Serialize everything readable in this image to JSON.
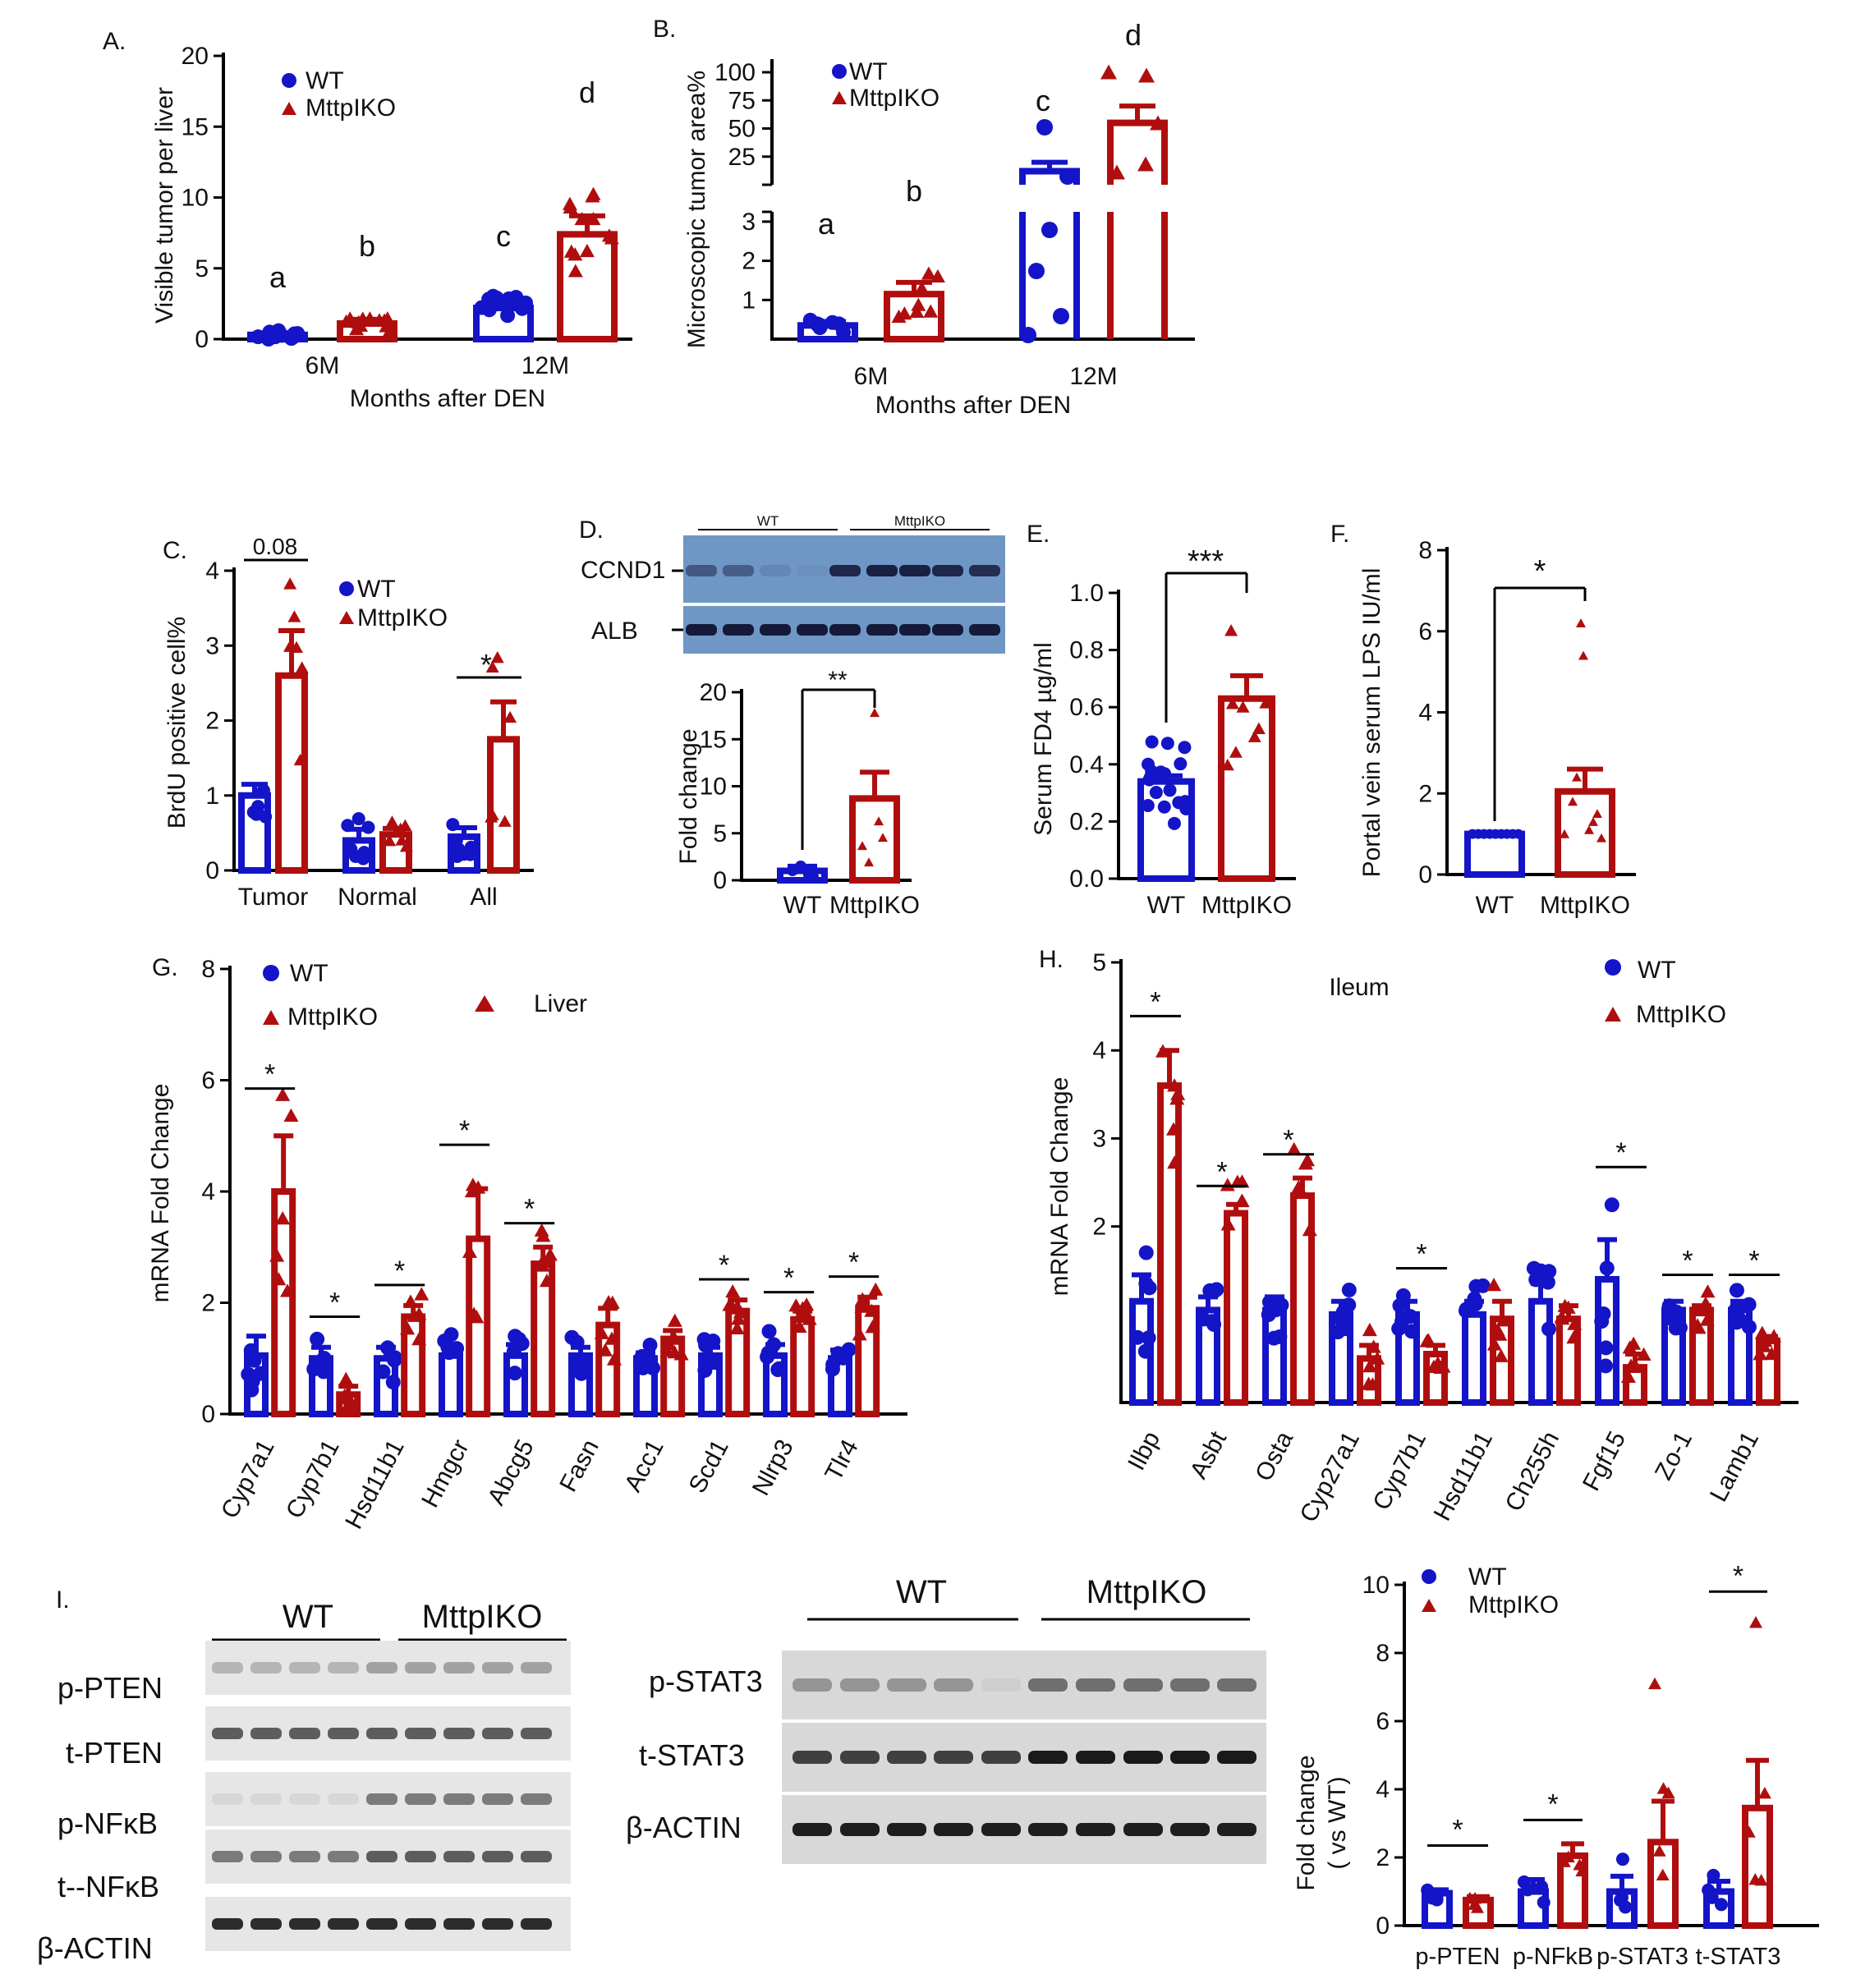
{
  "colors": {
    "wt": "#1414c8",
    "ko": "#b00e0e",
    "axis": "#000000",
    "blot_blue": "#6f97c6"
  },
  "panelA": {
    "letter": "A.",
    "ylabel": "Visible tumor per liver",
    "xlabel": "Months after DEN",
    "legend": [
      "WT",
      "MttpIKO"
    ],
    "sig_letters": [
      "a",
      "b",
      "c",
      "d"
    ]
  },
  "panelB": {
    "letter": "B.",
    "ylabel": "Microscopic tumor area%",
    "xlabel": "Months after DEN",
    "legend": [
      "WT",
      "MttpIKO"
    ],
    "sig_letters": [
      "a",
      "b",
      "c",
      "d"
    ]
  },
  "panelC": {
    "letter": "C.",
    "ylabel": "BrdU positive cell%",
    "legend": [
      "WT",
      "MttpIKO"
    ],
    "annotations": [
      "0.08",
      "*"
    ]
  },
  "panelD": {
    "letter": "D.",
    "blot_groups": [
      "WT",
      "MttpIKO"
    ],
    "blot_rows": [
      "CCND1",
      "ALB"
    ],
    "ylabel": "Fold change",
    "annotation": "**"
  },
  "panelE": {
    "letter": "E.",
    "ylabel": "Serum FD4 µg/ml",
    "annotation": "***"
  },
  "panelF": {
    "letter": "F.",
    "ylabel": "Portal vein serum LPS IU/ml",
    "annotation": "*"
  },
  "panelG": {
    "letter": "G.",
    "ylabel": "mRNA Fold Change",
    "legend": [
      "WT",
      "MttpIKO"
    ],
    "tissue": "Liver",
    "sig_mark": "*"
  },
  "panelH": {
    "letter": "H.",
    "ylabel": "mRNA Fold Change",
    "legend": [
      "WT",
      "MttpIKO"
    ],
    "tissue": "Ileum",
    "sig_mark": "*"
  },
  "panelI": {
    "letter": "I.",
    "blot1_groups": [
      "WT",
      "MttpIKO"
    ],
    "blot1_rows": [
      "p-PTEN",
      "t-PTEN",
      "p-NFκB",
      "t--NFκB",
      "β-ACTIN"
    ],
    "blot2_groups": [
      "WT",
      "MttpIKO"
    ],
    "blot2_rows": [
      "p-STAT3",
      "t-STAT3",
      "β-ACTIN"
    ],
    "ylabel": "Fold change",
    "ylabel2": "( vs WT)",
    "legend": [
      "WT",
      "MttpIKO"
    ],
    "sig_mark": "*"
  },
  "chart_data": [
    {
      "id": "A",
      "type": "bar",
      "categories": [
        "6M",
        "12M"
      ],
      "series": [
        {
          "name": "WT",
          "values": [
            0.3,
            2.2
          ]
        },
        {
          "name": "MttpIKO",
          "values": [
            1.1,
            7.4
          ]
        }
      ],
      "errors": [
        [
          0.15,
          0.4
        ],
        [
          0.3,
          1.3
        ]
      ],
      "ylim": [
        0,
        20
      ],
      "yticks": [
        0,
        5,
        10,
        15,
        20
      ],
      "ylabel": "Visible tumor per liver",
      "xlabel": "Months after DEN"
    },
    {
      "id": "B",
      "type": "bar",
      "broken_axis": true,
      "categories": [
        "6M",
        "12M"
      ],
      "series": [
        {
          "name": "WT",
          "values": [
            0.35,
            12
          ]
        },
        {
          "name": "MttpIKO",
          "values": [
            1.15,
            55
          ]
        }
      ],
      "errors": [
        [
          0.1,
          8
        ],
        [
          0.3,
          15
        ]
      ],
      "yticks_lower": [
        1,
        2,
        3
      ],
      "yticks_upper": [
        25,
        50,
        75,
        100
      ],
      "ylabel": "Microscopic tumor area%",
      "xlabel": "Months after DEN"
    },
    {
      "id": "C",
      "type": "bar",
      "categories": [
        "Tumor",
        "Normal",
        "All"
      ],
      "series": [
        {
          "name": "WT",
          "values": [
            1.0,
            0.4,
            0.45
          ]
        },
        {
          "name": "MttpIKO",
          "values": [
            2.6,
            0.48,
            1.75
          ]
        }
      ],
      "errors": [
        [
          0.15,
          0.15,
          0.12
        ],
        [
          0.6,
          0.08,
          0.5
        ]
      ],
      "ylim": [
        0,
        4
      ],
      "yticks": [
        0,
        1,
        2,
        3,
        4
      ],
      "ylabel": "BrdU positive cell%"
    },
    {
      "id": "D",
      "type": "bar",
      "categories": [
        "WT",
        "MttpIKO"
      ],
      "values": [
        1.0,
        8.7
      ],
      "errors": [
        0.5,
        2.8
      ],
      "ylim": [
        0,
        20
      ],
      "yticks": [
        0,
        5,
        10,
        15,
        20
      ],
      "ylabel": "Fold change"
    },
    {
      "id": "E",
      "type": "bar",
      "categories": [
        "WT",
        "MttpIKO"
      ],
      "values": [
        0.34,
        0.63
      ],
      "errors": [
        0.02,
        0.08
      ],
      "ylim": [
        0,
        1.0
      ],
      "yticks": [
        0.0,
        0.2,
        0.4,
        0.6,
        0.8,
        1.0
      ],
      "ylabel": "Serum FD4 µg/ml"
    },
    {
      "id": "F",
      "type": "bar",
      "categories": [
        "WT",
        "MttpIKO"
      ],
      "values": [
        1.0,
        2.05
      ],
      "errors": [
        0.03,
        0.55
      ],
      "ylim": [
        0,
        8
      ],
      "yticks": [
        0,
        2,
        4,
        6,
        8
      ],
      "ylabel": "Portal vein serum LPS IU/ml"
    },
    {
      "id": "G",
      "type": "bar",
      "categories": [
        "Cyp7a1",
        "Cyp7b1",
        "Hsd11b1",
        "Hmgcr",
        "Abcg5",
        "Fasn",
        "Acc1",
        "Scd1",
        "Nlrp3",
        "Tlr4"
      ],
      "series": [
        {
          "name": "WT",
          "values": [
            1.05,
            1.0,
            1.0,
            1.05,
            1.05,
            1.05,
            1.0,
            1.05,
            1.05,
            1.0
          ]
        },
        {
          "name": "MttpIKO",
          "values": [
            4.0,
            0.35,
            1.75,
            3.15,
            2.7,
            1.6,
            1.35,
            1.85,
            1.7,
            1.9
          ]
        }
      ],
      "errors": [
        [
          0.35,
          0.2,
          0.2,
          0.2,
          0.2,
          0.15,
          0.1,
          0.15,
          0.2,
          0.15
        ],
        [
          1.0,
          0.15,
          0.2,
          0.9,
          0.3,
          0.3,
          0.15,
          0.2,
          0.15,
          0.2
        ]
      ],
      "significant": [
        true,
        true,
        true,
        true,
        true,
        false,
        false,
        true,
        true,
        true
      ],
      "ylim": [
        0,
        8
      ],
      "yticks": [
        0,
        2,
        4,
        6,
        8
      ],
      "ylabel": "mRNA Fold Change"
    },
    {
      "id": "H",
      "type": "bar",
      "categories": [
        "Ilbp",
        "Asbt",
        "Osta",
        "Cyp27a1",
        "Cyp7b1",
        "Hsd11b1",
        "Ch255h",
        "Fgf15",
        "Zo-1",
        "Lamb1"
      ],
      "series": [
        {
          "name": "WT",
          "values": [
            1.15,
            1.05,
            1.05,
            1.0,
            1.0,
            1.0,
            1.15,
            1.4,
            1.05,
            1.05
          ]
        },
        {
          "name": "MttpIKO",
          "values": [
            3.6,
            2.15,
            2.35,
            0.5,
            0.55,
            0.95,
            0.95,
            0.4,
            1.05,
            0.7
          ]
        }
      ],
      "errors": [
        [
          0.3,
          0.15,
          0.15,
          0.15,
          0.15,
          0.15,
          0.2,
          0.45,
          0.1,
          0.1
        ],
        [
          0.4,
          0.1,
          0.2,
          0.15,
          0.1,
          0.2,
          0.15,
          0.15,
          0.05,
          0.05
        ]
      ],
      "significant": [
        true,
        true,
        true,
        false,
        true,
        false,
        false,
        true,
        true,
        true
      ],
      "ylim": [
        0,
        5
      ],
      "yticks": [
        2,
        3,
        4,
        5
      ],
      "ylabel": "mRNA Fold Change"
    },
    {
      "id": "I",
      "type": "bar",
      "categories": [
        "p-PTEN",
        "p-NFkB",
        "p-STAT3",
        "t-STAT3"
      ],
      "series": [
        {
          "name": "WT",
          "values": [
            0.95,
            1.0,
            1.0,
            1.0
          ]
        },
        {
          "name": "MttpIKO",
          "values": [
            0.75,
            2.05,
            2.45,
            3.45
          ]
        }
      ],
      "errors": [
        [
          0.1,
          0.35,
          0.45,
          0.3
        ],
        [
          0.1,
          0.35,
          1.2,
          1.4
        ]
      ],
      "significant": [
        true,
        true,
        false,
        true
      ],
      "ylim": [
        0,
        10
      ],
      "yticks": [
        0,
        2,
        4,
        6,
        8,
        10
      ],
      "ylabel": "Fold change ( vs WT)"
    }
  ]
}
